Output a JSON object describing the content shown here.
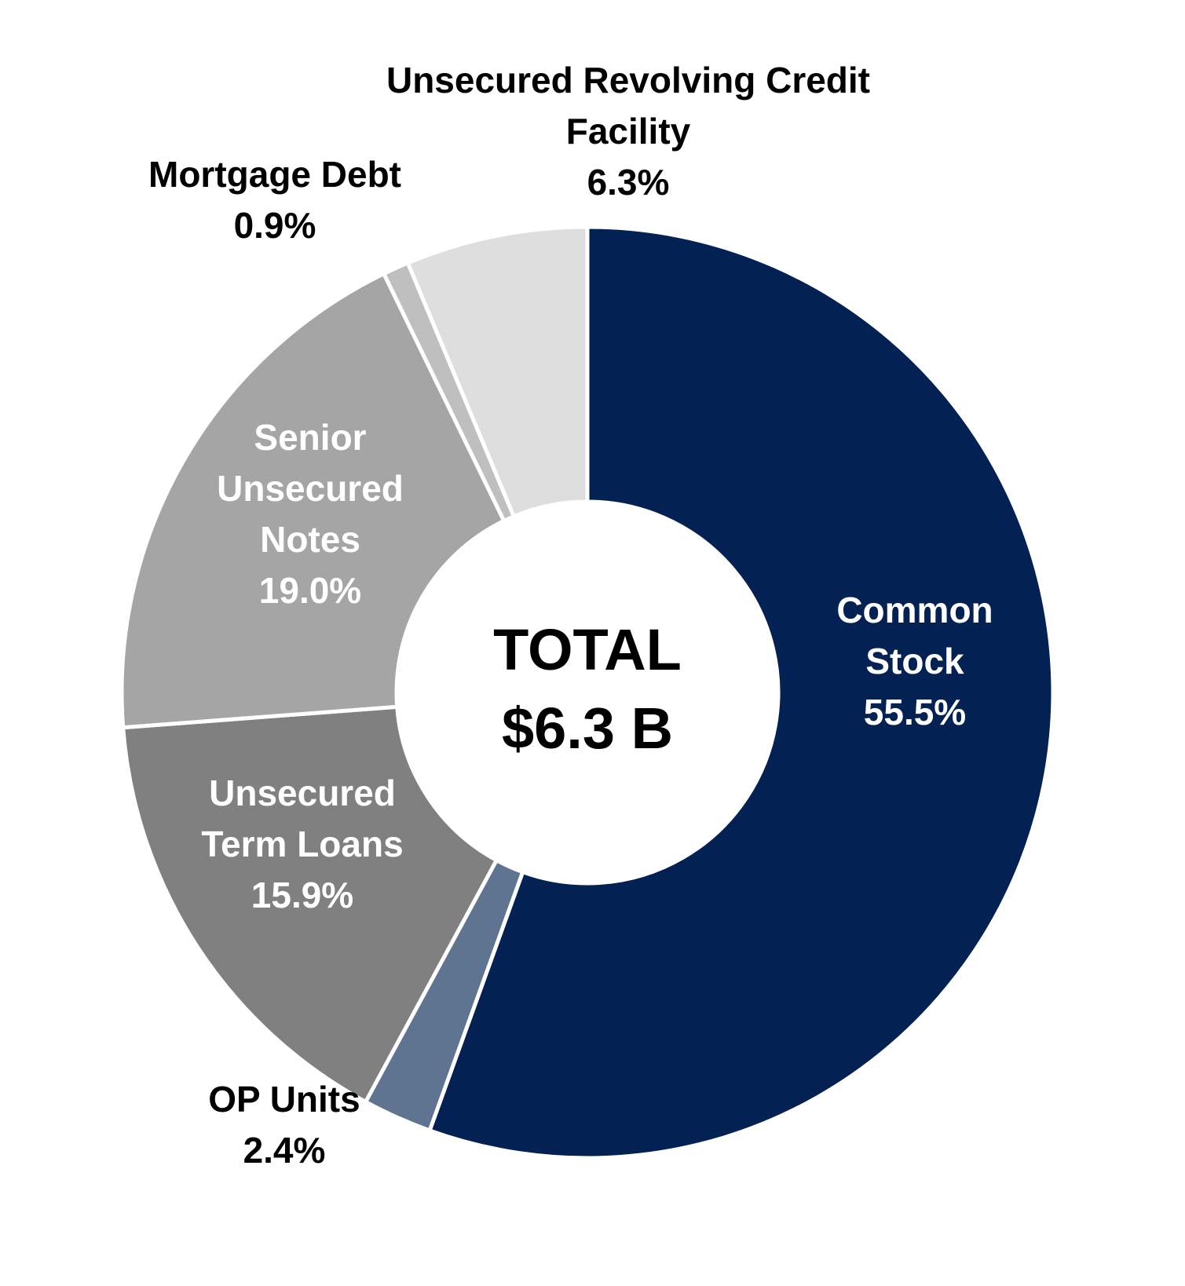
{
  "chart_data": {
    "type": "donut",
    "center_title": "TOTAL",
    "center_value_label": "$6.3 B",
    "categories": [
      "Common Stock",
      "OP Units",
      "Unsecured Term Loans",
      "Senior Unsecured Notes",
      "Mortgage Debt",
      "Unsecured Revolving Credit Facility"
    ],
    "values": [
      55.5,
      2.4,
      15.9,
      19.0,
      0.9,
      6.3
    ],
    "value_labels": [
      "55.5%",
      "2.4%",
      "15.9%",
      "19.0%",
      "0.9%",
      "6.3%"
    ],
    "colors": [
      "#032153",
      "#5f7490",
      "#808080",
      "#a5a5a5",
      "#bfbfbf",
      "#dedede"
    ]
  }
}
